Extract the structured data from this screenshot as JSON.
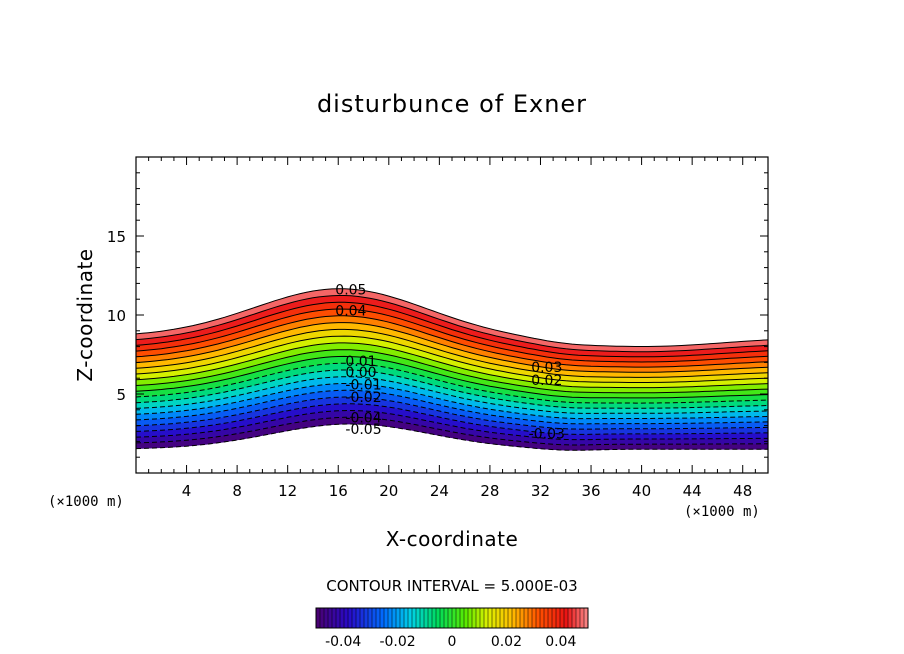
{
  "chart_data": {
    "type": "contour",
    "title": "disturbunce of Exner",
    "xlabel": "X-coordinate",
    "ylabel": "Z-coordinate",
    "x_unit": "(×1000 m)",
    "y_unit": "(×1000 m)",
    "xlim": [
      0,
      50
    ],
    "ylim": [
      0,
      20
    ],
    "x_ticks": [
      "4",
      "8",
      "12",
      "16",
      "20",
      "24",
      "28",
      "32",
      "36",
      "40",
      "44",
      "48"
    ],
    "y_ticks": [
      "5",
      "10",
      "15"
    ],
    "contour_interval_text": "CONTOUR INTERVAL = 5.000E-03",
    "levels": [
      -0.05,
      -0.045,
      -0.04,
      -0.035,
      -0.03,
      -0.025,
      -0.02,
      -0.015,
      -0.01,
      -0.005,
      0,
      0.005,
      0.01,
      0.015,
      0.02,
      0.025,
      0.03,
      0.035,
      0.04,
      0.045,
      0.05
    ],
    "negative_line_style": "dashed",
    "contour_labels": [
      {
        "text": "0.05",
        "x": 17,
        "z": 11.6
      },
      {
        "text": "0.04",
        "x": 17,
        "z": 10.3
      },
      {
        "text": "0.01",
        "x": 17.8,
        "z": 7.1
      },
      {
        "text": "0.00",
        "x": 17.8,
        "z": 6.4
      },
      {
        "text": "-0.01",
        "x": 18,
        "z": 5.6
      },
      {
        "text": "-0.02",
        "x": 18,
        "z": 4.8
      },
      {
        "text": "-0.04",
        "x": 18,
        "z": 3.5
      },
      {
        "text": "-0.05",
        "x": 18,
        "z": 2.8
      },
      {
        "text": "0.03",
        "x": 32.5,
        "z": 6.7
      },
      {
        "text": "0.02",
        "x": 32.5,
        "z": 5.9
      },
      {
        "text": "-0.03",
        "x": 32.5,
        "z": 2.5
      }
    ],
    "colorbar": {
      "ticks": [
        "-0.04",
        "-0.02",
        "0",
        "0.02",
        "0.04"
      ],
      "colormap": "rainbow",
      "range": [
        -0.05,
        0.05
      ]
    }
  }
}
